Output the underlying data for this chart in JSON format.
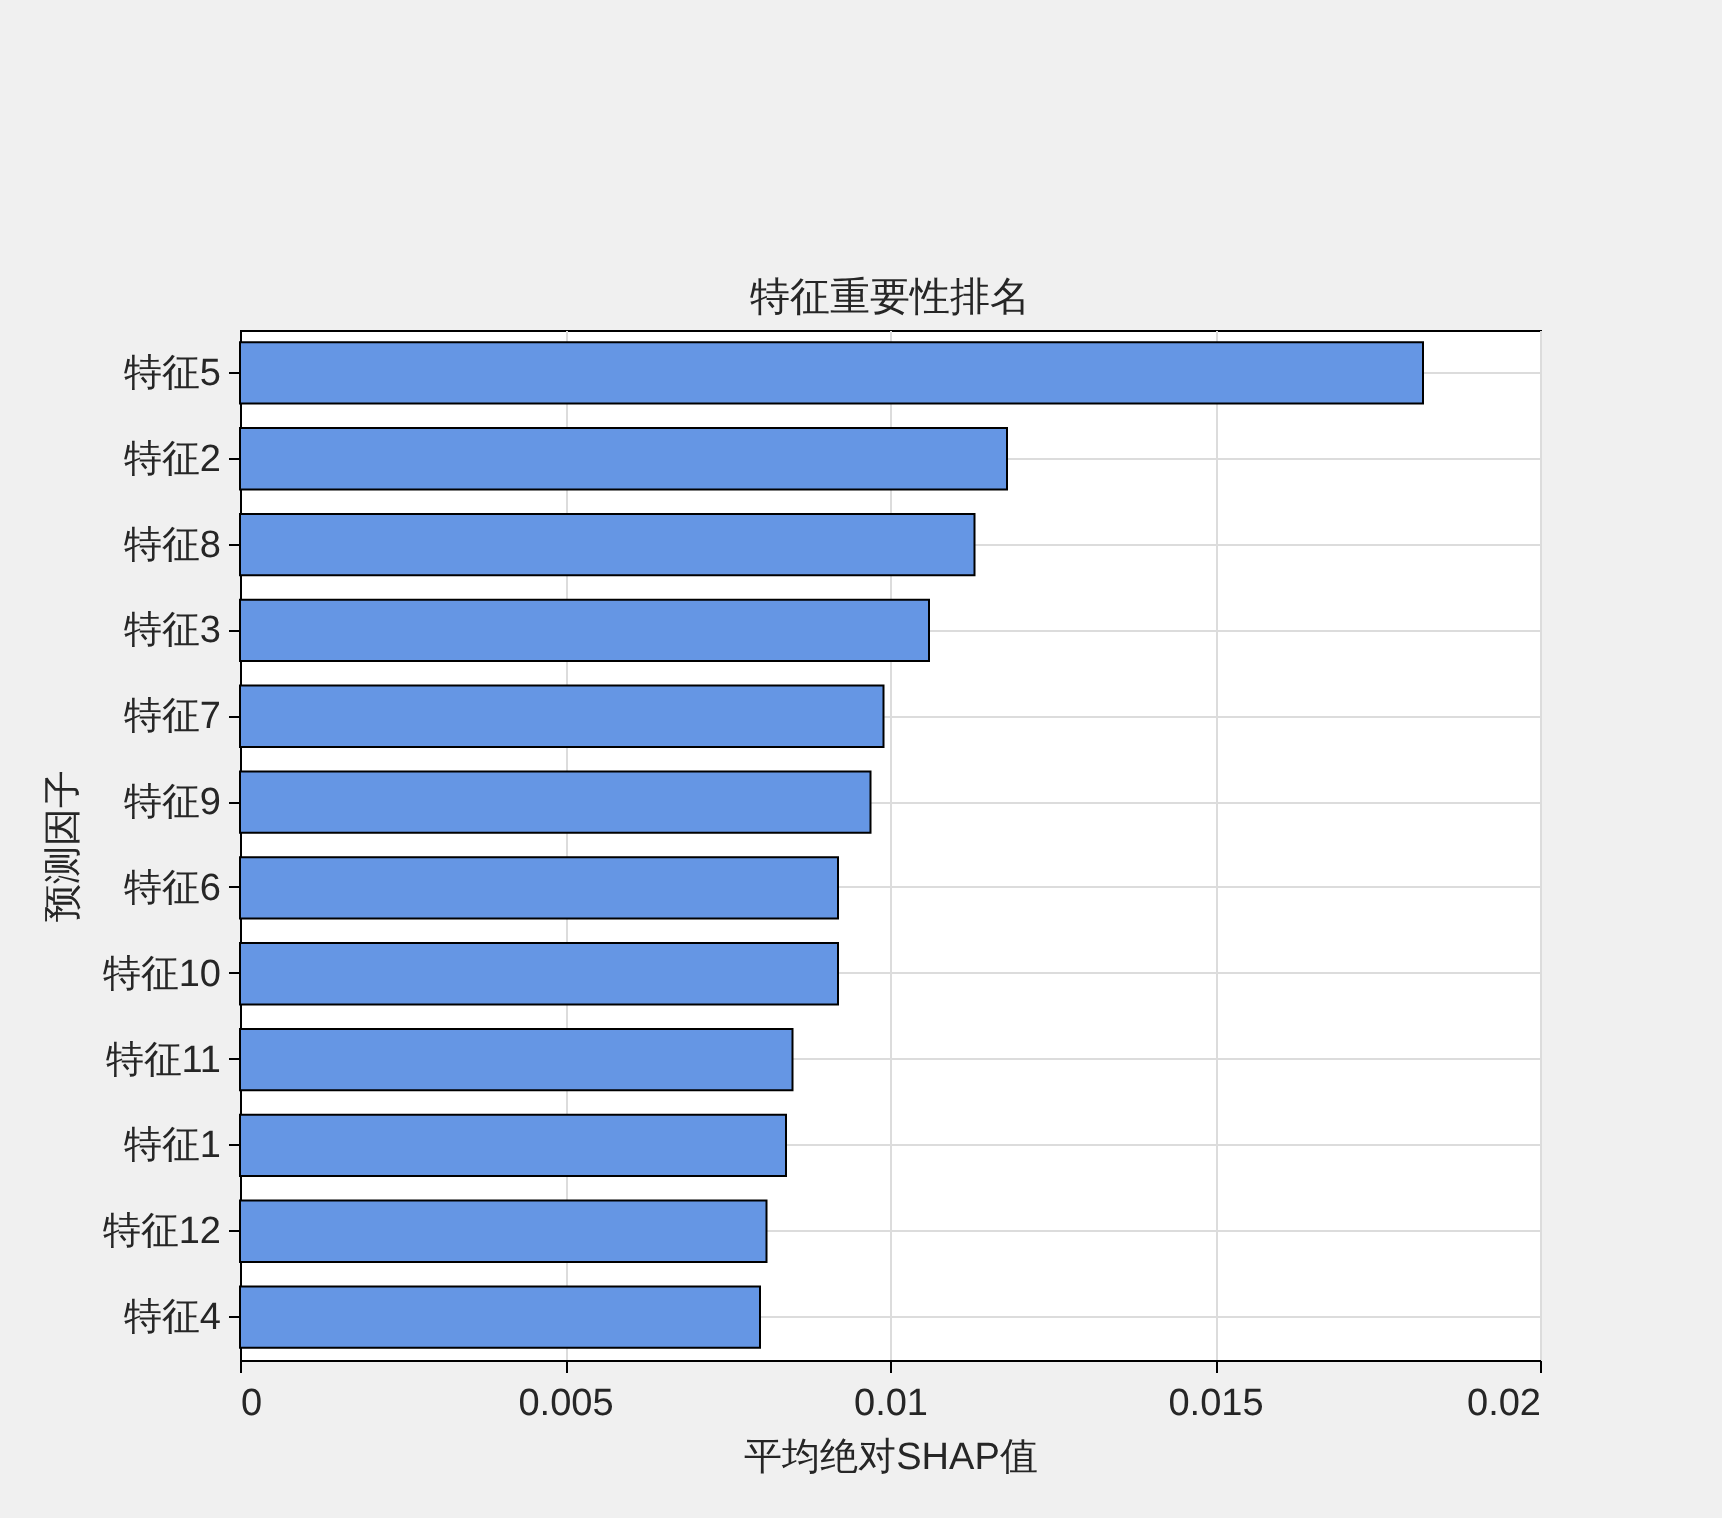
{
  "chart_data": {
    "type": "bar",
    "orientation": "horizontal",
    "title": "特征重要性排名",
    "xlabel": "平均绝对SHAP值",
    "ylabel": "预测因子",
    "categories": [
      "特征5",
      "特征2",
      "特征8",
      "特征3",
      "特征7",
      "特征9",
      "特征6",
      "特征10",
      "特征11",
      "特征1",
      "特征12",
      "特征4"
    ],
    "values": [
      0.0182,
      0.0118,
      0.0113,
      0.0106,
      0.0099,
      0.0097,
      0.0092,
      0.0092,
      0.0085,
      0.0084,
      0.0081,
      0.008
    ],
    "color": "#6596e4",
    "xlim": [
      0,
      0.02
    ],
    "xticks": [
      0,
      0.005,
      0.01,
      0.015,
      0.02
    ],
    "grid": true
  }
}
